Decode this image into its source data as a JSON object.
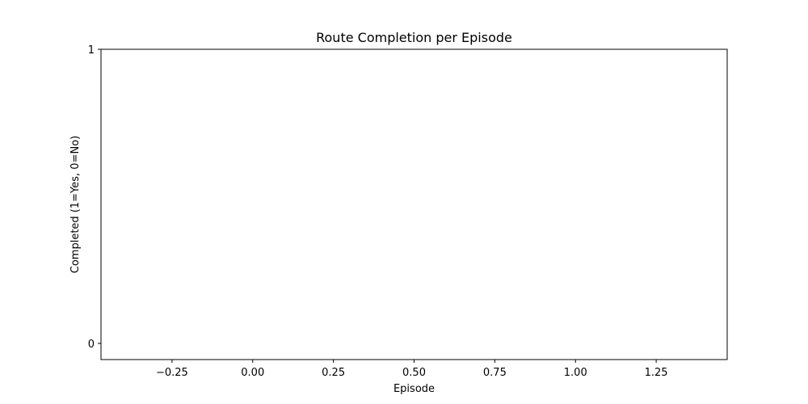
{
  "chart_data": {
    "type": "bar",
    "title": "Route Completion per Episode",
    "xlabel": "Episode",
    "ylabel": "Completed (1=Yes, 0=No)",
    "categories": [],
    "values": [],
    "xlim": [
      -0.47,
      1.47
    ],
    "ylim": [
      -0.055,
      1.0
    ],
    "xticks": [
      -0.25,
      0.0,
      0.25,
      0.5,
      0.75,
      1.0,
      1.25
    ],
    "xtick_labels": [
      "−0.25",
      "0.00",
      "0.25",
      "0.50",
      "0.75",
      "1.00",
      "1.25"
    ],
    "yticks": [
      0,
      1
    ],
    "ytick_labels": [
      "0",
      "1"
    ],
    "grid": false,
    "legend": "none"
  },
  "colors": {
    "axis": "#000000",
    "background": "#ffffff"
  }
}
